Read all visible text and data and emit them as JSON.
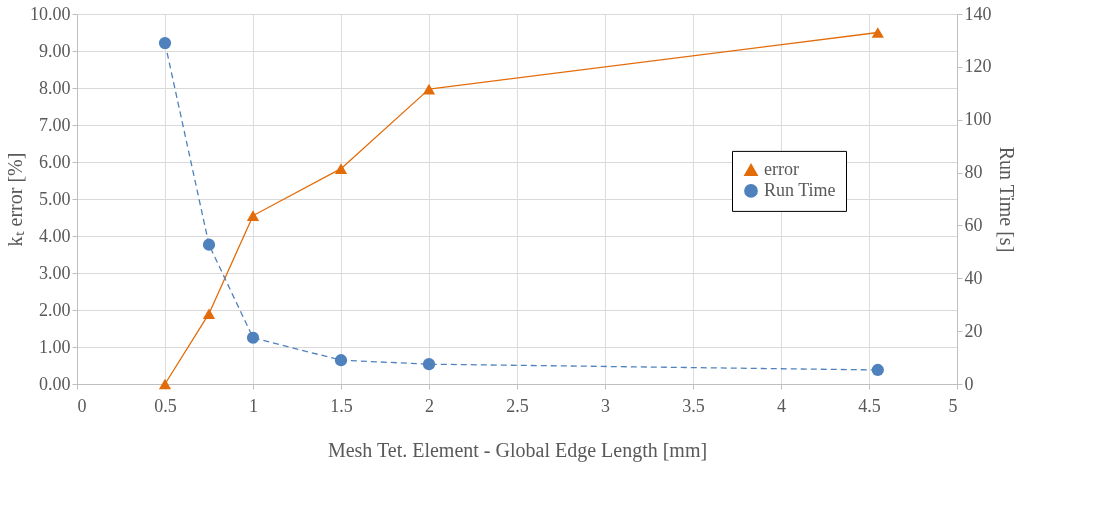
{
  "chart_data": {
    "type": "line",
    "xlabel": "Mesh Tet. Element - Global Edge Length [mm]",
    "ylabel": "kₜ error [%]",
    "y2label": "Run Time [s]",
    "xlim": [
      0,
      5
    ],
    "xticks": [
      0,
      0.5,
      1,
      1.5,
      2,
      2.5,
      3,
      3.5,
      4,
      4.5,
      5
    ],
    "ylim": [
      0,
      10
    ],
    "yticks": [
      {
        "value": 0,
        "label": "0.00"
      },
      {
        "value": 1,
        "label": "1.00"
      },
      {
        "value": 2,
        "label": "2.00"
      },
      {
        "value": 3,
        "label": "3.00"
      },
      {
        "value": 4,
        "label": "4.00"
      },
      {
        "value": 5,
        "label": "5.00"
      },
      {
        "value": 6,
        "label": "6.00"
      },
      {
        "value": 7,
        "label": "7.00"
      },
      {
        "value": 8,
        "label": "8.00"
      },
      {
        "value": 9,
        "label": "9.00"
      },
      {
        "value": 10,
        "label": "10.00"
      }
    ],
    "y2lim": [
      0,
      140
    ],
    "y2ticks": [
      0,
      20,
      40,
      60,
      80,
      100,
      120,
      140
    ],
    "x": [
      0.5,
      0.75,
      1,
      1.5,
      2,
      4.55
    ],
    "series": [
      {
        "name": "error",
        "color": "#e36c0a",
        "marker": "triangle",
        "line_style": "solid",
        "values": [
          0,
          1.9,
          4.55,
          5.82,
          7.97,
          9.5
        ]
      },
      {
        "name": "Run Time",
        "color": "#4f81bd",
        "marker": "circle",
        "line_style": "dashed",
        "axis": "y2",
        "values": [
          129,
          52.7,
          17.5,
          9,
          7.5,
          5.3
        ]
      }
    ],
    "grid": true,
    "legend": "right"
  }
}
